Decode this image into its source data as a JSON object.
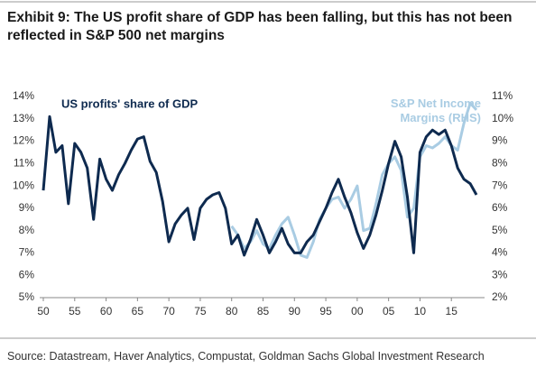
{
  "title": "Exhibit 9: The US profit share of GDP has been falling, but this has not been reflected in S&P 500 net margins",
  "source": "Source: Datastream, Haver Analytics, Compustat, Goldman Sachs Global Investment Research",
  "chart_data": {
    "type": "line",
    "x": [
      1950,
      1951,
      1952,
      1953,
      1954,
      1955,
      1956,
      1957,
      1958,
      1959,
      1960,
      1961,
      1962,
      1963,
      1964,
      1965,
      1966,
      1967,
      1968,
      1969,
      1970,
      1971,
      1972,
      1973,
      1974,
      1975,
      1976,
      1977,
      1978,
      1979,
      1980,
      1981,
      1982,
      1983,
      1984,
      1985,
      1986,
      1987,
      1988,
      1989,
      1990,
      1991,
      1992,
      1993,
      1994,
      1995,
      1996,
      1997,
      1998,
      1999,
      2000,
      2001,
      2002,
      2003,
      2004,
      2005,
      2006,
      2007,
      2008,
      2009,
      2010,
      2011,
      2012,
      2013,
      2014,
      2015,
      2016,
      2017,
      2018,
      2019
    ],
    "series": [
      {
        "name": "US profits' share of GDP",
        "color": "#0e2a4f",
        "values": [
          9.8,
          13.1,
          11.5,
          11.8,
          9.2,
          11.9,
          11.5,
          10.8,
          8.5,
          11.2,
          10.3,
          9.8,
          10.5,
          11.0,
          11.6,
          12.1,
          12.2,
          11.1,
          10.6,
          9.3,
          7.5,
          8.3,
          8.7,
          9.0,
          7.6,
          9.0,
          9.4,
          9.6,
          9.7,
          9.0,
          7.4,
          7.8,
          6.9,
          7.6,
          8.5,
          7.8,
          7.0,
          7.5,
          8.1,
          7.4,
          7.0,
          7.0,
          7.5,
          7.8,
          8.4,
          9.0,
          9.7,
          10.3,
          9.5,
          8.8,
          7.9,
          7.2,
          7.8,
          8.7,
          9.8,
          11.0,
          12.0,
          11.3,
          9.5,
          7.0,
          11.5,
          12.2,
          12.5,
          12.3,
          12.5,
          11.8,
          10.8,
          10.3,
          10.1,
          9.6
        ]
      },
      {
        "name": "S&P Net Income Margins (RHS)",
        "color": "#a9cce3",
        "axis": "y2",
        "values": [
          null,
          null,
          null,
          null,
          null,
          null,
          null,
          null,
          null,
          null,
          null,
          null,
          null,
          null,
          null,
          null,
          null,
          null,
          null,
          null,
          null,
          null,
          null,
          null,
          null,
          null,
          null,
          null,
          null,
          null,
          5.2,
          4.8,
          4.2,
          4.5,
          5.0,
          4.4,
          4.2,
          4.8,
          5.3,
          5.6,
          4.8,
          3.9,
          3.8,
          4.5,
          5.5,
          6.0,
          6.4,
          6.5,
          6.0,
          6.4,
          7.0,
          5.0,
          5.1,
          6.2,
          7.5,
          8.0,
          8.3,
          7.7,
          5.6,
          6.0,
          8.3,
          8.8,
          8.7,
          8.9,
          9.2,
          8.8,
          8.6,
          9.8,
          10.7,
          10.4
        ]
      }
    ],
    "xlim": [
      1950,
      2020
    ],
    "xticks": [
      {
        "value": 1950,
        "label": "50"
      },
      {
        "value": 1955,
        "label": "55"
      },
      {
        "value": 1960,
        "label": "60"
      },
      {
        "value": 1965,
        "label": "65"
      },
      {
        "value": 1970,
        "label": "70"
      },
      {
        "value": 1975,
        "label": "75"
      },
      {
        "value": 1980,
        "label": "80"
      },
      {
        "value": 1985,
        "label": "85"
      },
      {
        "value": 1990,
        "label": "90"
      },
      {
        "value": 1995,
        "label": "95"
      },
      {
        "value": 2000,
        "label": "00"
      },
      {
        "value": 2005,
        "label": "05"
      },
      {
        "value": 2010,
        "label": "10"
      },
      {
        "value": 2015,
        "label": "15"
      }
    ],
    "ylim": [
      5,
      14
    ],
    "yticks": [
      {
        "value": 5,
        "label": "5%"
      },
      {
        "value": 6,
        "label": "6%"
      },
      {
        "value": 7,
        "label": "7%"
      },
      {
        "value": 8,
        "label": "8%"
      },
      {
        "value": 9,
        "label": "9%"
      },
      {
        "value": 10,
        "label": "10%"
      },
      {
        "value": 11,
        "label": "11%"
      },
      {
        "value": 12,
        "label": "12%"
      },
      {
        "value": 13,
        "label": "13%"
      },
      {
        "value": 14,
        "label": "14%"
      }
    ],
    "y2lim": [
      2,
      11
    ],
    "y2ticks": [
      {
        "value": 2,
        "label": "2%"
      },
      {
        "value": 3,
        "label": "3%"
      },
      {
        "value": 4,
        "label": "4%"
      },
      {
        "value": 5,
        "label": "5%"
      },
      {
        "value": 6,
        "label": "6%"
      },
      {
        "value": 7,
        "label": "7%"
      },
      {
        "value": 8,
        "label": "8%"
      },
      {
        "value": 9,
        "label": "9%"
      },
      {
        "value": 10,
        "label": "10%"
      },
      {
        "value": 11,
        "label": "11%"
      }
    ]
  }
}
